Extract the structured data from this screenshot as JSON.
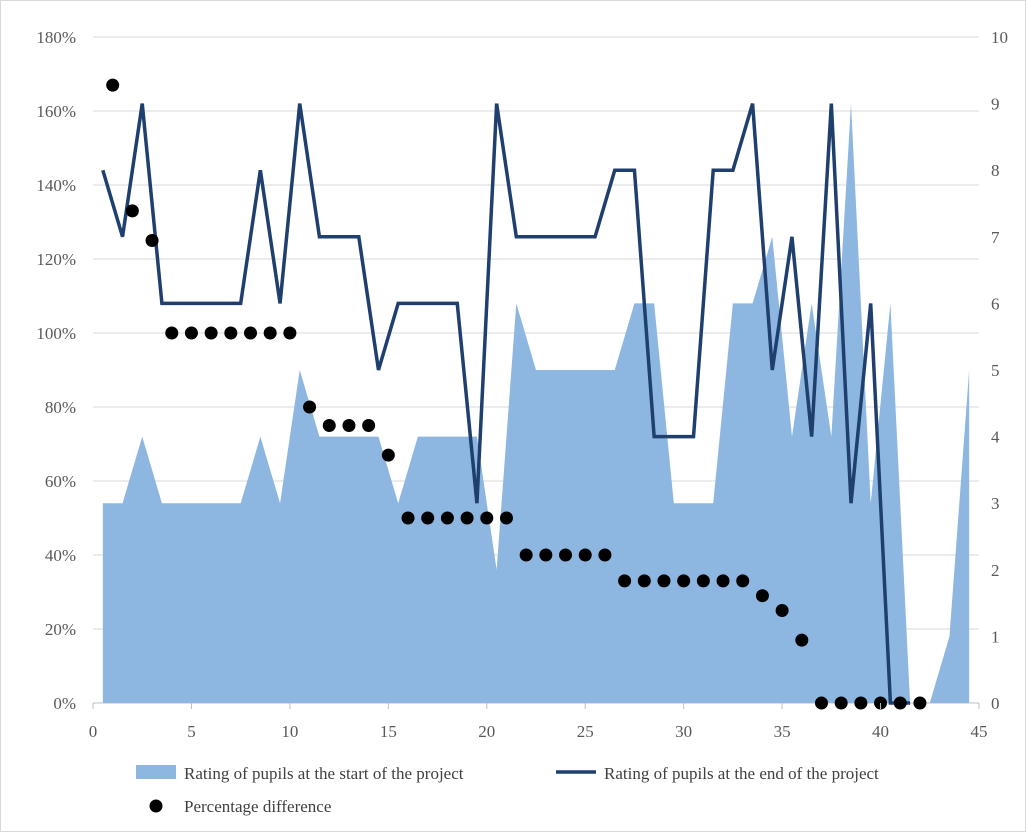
{
  "chart_data": {
    "type": "area",
    "xlim": [
      0,
      45
    ],
    "x_ticks": [
      0,
      5,
      10,
      15,
      20,
      25,
      30,
      35,
      40,
      45
    ],
    "y_left": {
      "ylim": [
        0,
        180
      ],
      "ticks": [
        "0%",
        "20%",
        "40%",
        "60%",
        "80%",
        "100%",
        "120%",
        "140%",
        "160%",
        "180%"
      ],
      "tick_values": [
        0,
        20,
        40,
        60,
        80,
        100,
        120,
        140,
        160,
        180
      ]
    },
    "y_right": {
      "ylim": [
        0,
        10
      ],
      "ticks": [
        "0",
        "1",
        "2",
        "3",
        "4",
        "5",
        "6",
        "7",
        "8",
        "9",
        "10"
      ],
      "tick_values": [
        0,
        1,
        2,
        3,
        4,
        5,
        6,
        7,
        8,
        9,
        10
      ]
    },
    "grid": true,
    "legend_position": "bottom",
    "series": [
      {
        "name": "Rating of pupils at the start of the project",
        "type": "area",
        "axis": "right",
        "color": "#8db7e0",
        "x": [
          0.5,
          1.5,
          2.5,
          3.5,
          4.5,
          5.5,
          6.5,
          7.5,
          8.5,
          9.5,
          10.5,
          11.5,
          12.5,
          13.5,
          14.5,
          15.5,
          16.5,
          17.5,
          18.5,
          19.5,
          20.5,
          21.5,
          22.5,
          23.5,
          24.5,
          25.5,
          26.5,
          27.5,
          28.5,
          29.5,
          30.5,
          31.5,
          32.5,
          33.5,
          34.5,
          35.5,
          36.5,
          37.5,
          38.5,
          39.5,
          40.5,
          41.5,
          42.5,
          43.5,
          44.5
        ],
        "values": [
          3,
          3,
          4,
          3,
          3,
          3,
          3,
          3,
          4,
          3,
          5,
          4,
          4,
          4,
          4,
          3,
          4,
          4,
          4,
          4,
          2,
          6,
          5,
          5,
          5,
          5,
          5,
          6,
          6,
          3,
          3,
          3,
          6,
          6,
          7,
          4,
          6,
          4,
          9,
          3,
          6,
          0,
          0,
          1,
          5
        ]
      },
      {
        "name": "Rating of pupils at the end of the project",
        "type": "line",
        "axis": "right",
        "color": "#1f3f6e",
        "x": [
          0.5,
          1.5,
          2.5,
          3.5,
          4.5,
          5.5,
          6.5,
          7.5,
          8.5,
          9.5,
          10.5,
          11.5,
          12.5,
          13.5,
          14.5,
          15.5,
          16.5,
          17.5,
          18.5,
          19.5,
          20.5,
          21.5,
          22.5,
          23.5,
          24.5,
          25.5,
          26.5,
          27.5,
          28.5,
          29.5,
          30.5,
          31.5,
          32.5,
          33.5,
          34.5,
          35.5,
          36.5,
          37.5,
          38.5,
          39.5,
          40.5,
          41.5,
          42.5,
          43.5,
          44.5
        ],
        "values": [
          8,
          7,
          9,
          6,
          6,
          6,
          6,
          6,
          8,
          6,
          9,
          7,
          7,
          7,
          5,
          6,
          6,
          6,
          6,
          3,
          9,
          7,
          7,
          7,
          7,
          7,
          8,
          8,
          4,
          4,
          4,
          8,
          8,
          9,
          5,
          7,
          4,
          9,
          3,
          6,
          0,
          0,
          null,
          null,
          null
        ]
      },
      {
        "name": "Percentage difference",
        "type": "scatter",
        "axis": "left",
        "color": "#000000",
        "x": [
          1,
          2,
          3,
          4,
          5,
          6,
          7,
          8,
          9,
          10,
          11,
          12,
          13,
          14,
          15,
          16,
          17,
          18,
          19,
          20,
          21,
          22,
          23,
          24,
          25,
          26,
          27,
          28,
          29,
          30,
          31,
          32,
          33,
          34,
          35,
          36,
          37,
          38,
          39,
          40,
          41,
          42
        ],
        "values": [
          167,
          133,
          125,
          100,
          100,
          100,
          100,
          100,
          100,
          100,
          80,
          75,
          75,
          75,
          67,
          50,
          50,
          50,
          50,
          50,
          50,
          40,
          40,
          40,
          40,
          40,
          33,
          33,
          33,
          33,
          33,
          33,
          33,
          29,
          25,
          17,
          0,
          0,
          0,
          0,
          0,
          0
        ]
      }
    ]
  }
}
